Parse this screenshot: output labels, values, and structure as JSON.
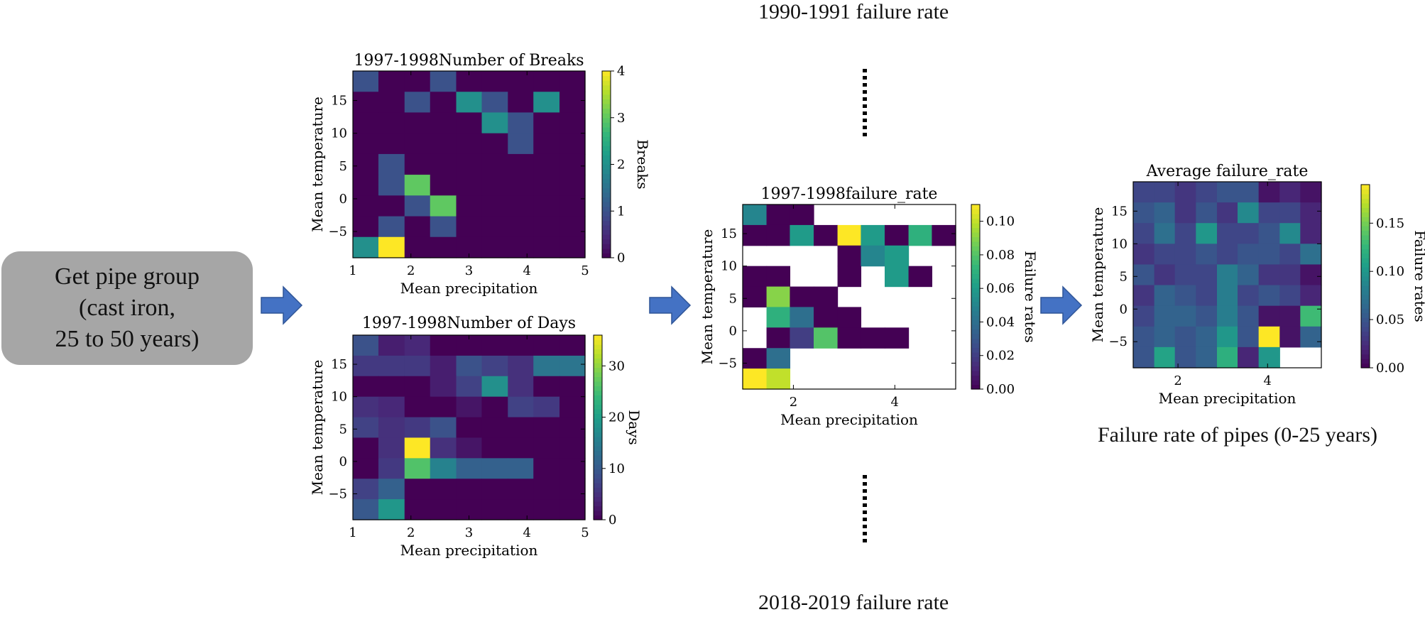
{
  "start_box": {
    "lines": [
      "Get pipe group",
      "(cast iron,",
      "25 to 50 years)"
    ],
    "color": "#a6a6a6"
  },
  "captions": {
    "top": "1990-1991 failure rate",
    "bottom": "2018-2019 failure rate",
    "right": "Failure rate of pipes (0-25 years)"
  },
  "arrow_color": "#4472c4",
  "chart_data": [
    {
      "id": "breaks",
      "type": "heatmap",
      "title": "1997-1998Number of Breaks",
      "xlabel": "Mean precipitation",
      "ylabel": "Mean temperature",
      "colorbar_label": "Breaks",
      "xlim": [
        1,
        5
      ],
      "ylim": [
        -9,
        19.5
      ],
      "xticks": [
        1,
        2,
        3,
        4,
        5
      ],
      "yticks": [
        -5,
        0,
        5,
        10,
        15
      ],
      "cbar_range": [
        0,
        4
      ],
      "cbar_ticks": [
        0,
        1,
        2,
        3,
        4
      ],
      "x_edges": [
        1.0,
        1.44,
        1.89,
        2.33,
        2.78,
        3.22,
        3.67,
        4.11,
        4.56,
        5.0
      ],
      "y_edges": [
        19.5,
        16.33,
        13.17,
        10.0,
        6.83,
        3.67,
        0.5,
        -2.67,
        -5.83,
        -9.0
      ],
      "grid": [
        [
          1,
          0,
          0,
          1,
          0,
          0,
          0,
          0,
          0
        ],
        [
          0,
          0,
          1,
          0,
          2,
          1,
          0,
          2,
          0
        ],
        [
          0,
          0,
          0,
          0,
          0,
          2,
          1,
          0,
          0
        ],
        [
          0,
          0,
          0,
          0,
          0,
          0,
          1,
          0,
          0
        ],
        [
          0,
          1,
          0,
          0,
          0,
          0,
          0,
          0,
          0
        ],
        [
          0,
          1,
          3,
          0,
          0,
          0,
          0,
          0,
          0
        ],
        [
          0,
          0,
          1,
          3,
          0,
          0,
          0,
          0,
          0
        ],
        [
          0,
          1,
          0,
          1,
          0,
          0,
          0,
          0,
          0
        ],
        [
          2,
          4,
          0,
          0,
          0,
          0,
          0,
          0,
          0
        ]
      ]
    },
    {
      "id": "days",
      "type": "heatmap",
      "title": "1997-1998Number of Days",
      "xlabel": "Mean precipitation",
      "ylabel": "Mean temperature",
      "colorbar_label": "Days",
      "xlim": [
        1,
        5
      ],
      "ylim": [
        -9,
        19.5
      ],
      "xticks": [
        1,
        2,
        3,
        4,
        5
      ],
      "yticks": [
        -5,
        0,
        5,
        10,
        15
      ],
      "cbar_range": [
        0,
        36
      ],
      "cbar_ticks": [
        0,
        10,
        20,
        30
      ],
      "x_edges": [
        1.0,
        1.44,
        1.89,
        2.33,
        2.78,
        3.22,
        3.67,
        4.11,
        4.56,
        5.0
      ],
      "y_edges": [
        19.5,
        16.33,
        13.17,
        10.0,
        6.83,
        3.67,
        0.5,
        -2.67,
        -5.83,
        -9.0
      ],
      "grid": [
        [
          9,
          3,
          4,
          0,
          0,
          0,
          0,
          0,
          0
        ],
        [
          6,
          6,
          6,
          3,
          9,
          7,
          5,
          14,
          14
        ],
        [
          0,
          0,
          0,
          3,
          7,
          18,
          5,
          0,
          0
        ],
        [
          5,
          4,
          0,
          0,
          2,
          0,
          7,
          6,
          0
        ],
        [
          7,
          5,
          6,
          9,
          0,
          0,
          0,
          0,
          0
        ],
        [
          0,
          5,
          36,
          5,
          2,
          0,
          0,
          0,
          0
        ],
        [
          0,
          6,
          26,
          16,
          11,
          11,
          11,
          0,
          0
        ],
        [
          7,
          11,
          0,
          0,
          0,
          0,
          0,
          0,
          0
        ],
        [
          10,
          19,
          0,
          0,
          0,
          0,
          0,
          0,
          0
        ]
      ]
    },
    {
      "id": "failure",
      "type": "heatmap",
      "title": "1997-1998failure_rate",
      "xlabel": "Mean precipitation",
      "ylabel": "Mean temperature",
      "colorbar_label": "Failure rates",
      "xlim": [
        1,
        5.2
      ],
      "ylim": [
        -9,
        19.5
      ],
      "xticks": [
        2,
        4
      ],
      "yticks": [
        -5,
        0,
        5,
        10,
        15
      ],
      "cbar_range": [
        0,
        0.11
      ],
      "cbar_ticks": [
        0.0,
        0.02,
        0.04,
        0.06,
        0.08,
        0.1
      ],
      "cbar_tick_labels": [
        "0.00",
        "0.02",
        "0.04",
        "0.06",
        "0.08",
        "0.10"
      ],
      "x_edges": [
        1.0,
        1.47,
        1.93,
        2.4,
        2.87,
        3.33,
        3.8,
        4.27,
        4.73,
        5.2
      ],
      "y_edges": [
        19.5,
        16.33,
        13.17,
        10.0,
        6.83,
        3.67,
        0.5,
        -2.67,
        -5.83,
        -9.0
      ],
      "grid": [
        [
          0.05,
          0.0,
          0.0,
          null,
          null,
          null,
          null,
          null,
          null
        ],
        [
          0.0,
          0.0,
          0.06,
          0.0,
          0.11,
          0.06,
          0.0,
          0.07,
          0.0
        ],
        [
          null,
          null,
          null,
          null,
          0.0,
          0.05,
          0.06,
          null,
          null
        ],
        [
          0.0,
          0.0,
          null,
          null,
          0.0,
          null,
          0.06,
          0.0,
          null
        ],
        [
          0.0,
          0.09,
          0.0,
          0.0,
          null,
          null,
          null,
          null,
          null
        ],
        [
          null,
          0.07,
          0.04,
          0.0,
          0.0,
          null,
          null,
          null,
          null
        ],
        [
          null,
          0.0,
          0.02,
          0.08,
          0.0,
          0.0,
          0.0,
          null,
          null
        ],
        [
          0.0,
          0.04,
          null,
          null,
          null,
          null,
          null,
          null,
          null
        ],
        [
          0.11,
          0.1,
          null,
          null,
          null,
          null,
          null,
          null,
          null
        ]
      ]
    },
    {
      "id": "average",
      "type": "heatmap",
      "title": "Average failure_rate",
      "xlabel": "Mean precipitation",
      "ylabel": "Mean temperature",
      "colorbar_label": "Failure rates",
      "xlim": [
        1,
        5.2
      ],
      "ylim": [
        -9,
        19.5
      ],
      "xticks": [
        2,
        4
      ],
      "yticks": [
        -5,
        0,
        5,
        10,
        15
      ],
      "cbar_range": [
        0,
        0.19
      ],
      "cbar_ticks": [
        0.0,
        0.05,
        0.1,
        0.15
      ],
      "cbar_tick_labels": [
        "0.00",
        "0.05",
        "0.10",
        "0.15"
      ],
      "x_edges": [
        1.0,
        1.47,
        1.93,
        2.4,
        2.87,
        3.33,
        3.8,
        4.27,
        4.73,
        5.2
      ],
      "y_edges": [
        19.5,
        16.33,
        13.17,
        10.0,
        6.83,
        3.67,
        0.5,
        -2.67,
        -5.83,
        -9.0
      ],
      "grid": [
        [
          0.04,
          0.04,
          0.03,
          0.04,
          0.05,
          0.05,
          0.01,
          0.02,
          0.01
        ],
        [
          0.05,
          0.06,
          0.03,
          0.05,
          0.03,
          0.09,
          0.04,
          0.04,
          0.02
        ],
        [
          0.04,
          0.07,
          0.04,
          0.1,
          0.04,
          0.04,
          0.05,
          0.09,
          0.02
        ],
        [
          0.03,
          0.04,
          0.04,
          0.05,
          0.04,
          0.05,
          0.05,
          0.04,
          0.07
        ],
        [
          0.05,
          0.03,
          0.04,
          0.04,
          0.08,
          0.06,
          0.03,
          0.03,
          0.01
        ],
        [
          0.03,
          0.06,
          0.05,
          0.04,
          0.08,
          0.04,
          0.05,
          0.04,
          0.02
        ],
        [
          0.04,
          0.06,
          0.06,
          0.05,
          0.08,
          0.05,
          0.01,
          0.01,
          0.13
        ],
        [
          0.05,
          0.06,
          0.05,
          0.06,
          0.1,
          0.05,
          0.19,
          0.01,
          0.06
        ],
        [
          0.05,
          0.11,
          0.05,
          0.06,
          0.12,
          0.02,
          0.1,
          null,
          null
        ]
      ]
    }
  ]
}
